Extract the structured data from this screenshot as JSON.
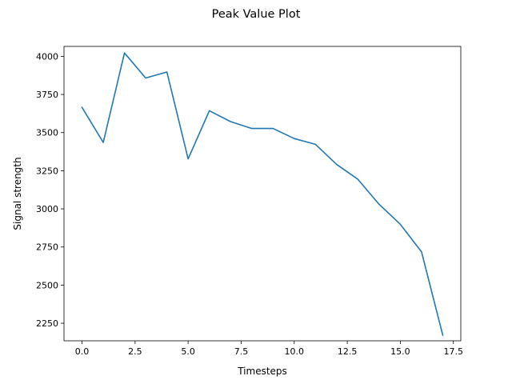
{
  "chart_data": {
    "type": "line",
    "title": "Peak Value Plot",
    "xlabel": "Timesteps",
    "ylabel": "Signal strength",
    "xlim": [
      -0.85,
      17.85
    ],
    "ylim": [
      2135,
      4065
    ],
    "xticks": [
      0.0,
      2.5,
      5.0,
      7.5,
      10.0,
      12.5,
      15.0,
      17.5
    ],
    "xtick_labels": [
      "0.0",
      "2.5",
      "5.0",
      "7.5",
      "10.0",
      "12.5",
      "15.0",
      "17.5"
    ],
    "yticks": [
      2250,
      2500,
      2750,
      3000,
      3250,
      3500,
      3750,
      4000
    ],
    "ytick_labels": [
      "2250",
      "2500",
      "2750",
      "3000",
      "3250",
      "3500",
      "3750",
      "4000"
    ],
    "grid": false,
    "series": [
      {
        "color": "#1f77b4",
        "x": [
          0,
          1,
          2,
          3,
          4,
          5,
          6,
          7,
          8,
          9,
          10,
          11,
          12,
          13,
          14,
          15,
          16,
          17
        ],
        "y": [
          3665,
          3435,
          4022,
          3858,
          3897,
          3328,
          3643,
          3572,
          3527,
          3527,
          3461,
          3423,
          3291,
          3194,
          3030,
          2899,
          2718,
          2172
        ]
      }
    ]
  }
}
